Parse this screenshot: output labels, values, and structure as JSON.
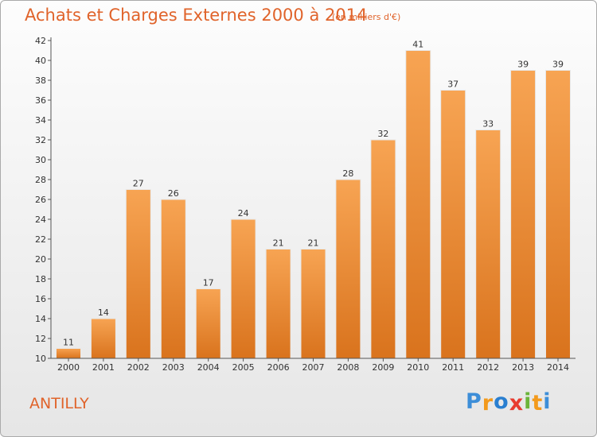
{
  "chart_data": {
    "type": "bar",
    "title": "Achats et Charges Externes 2000 à 2014",
    "unit_note": "(en milliers d'€)",
    "categories": [
      "2000",
      "2001",
      "2002",
      "2003",
      "2004",
      "2005",
      "2006",
      "2007",
      "2008",
      "2009",
      "2010",
      "2011",
      "2012",
      "2013",
      "2014"
    ],
    "values": [
      11,
      14,
      27,
      26,
      17,
      24,
      21,
      21,
      28,
      32,
      41,
      37,
      33,
      39,
      39
    ],
    "ylim": [
      10,
      42
    ],
    "yticks": [
      10,
      12,
      14,
      16,
      18,
      20,
      22,
      24,
      26,
      28,
      30,
      32,
      34,
      36,
      38,
      40,
      42
    ],
    "xlabel": "",
    "ylabel": "",
    "grid": false,
    "colors": {
      "bar_light": "#f7a453",
      "bar_dark": "#d9731d",
      "axis": "#555555",
      "text_accent": "#e0632a"
    }
  },
  "footer": {
    "commune": "ANTILLY"
  },
  "logo": {
    "letters": [
      "P",
      "r",
      "o",
      "x",
      "i",
      "t",
      "i"
    ],
    "colors": [
      "#3d8ed8",
      "#f39a1c",
      "#2a7fd0",
      "#e83b2f",
      "#6bb43a",
      "#f39a1c",
      "#3d8ed8"
    ]
  }
}
